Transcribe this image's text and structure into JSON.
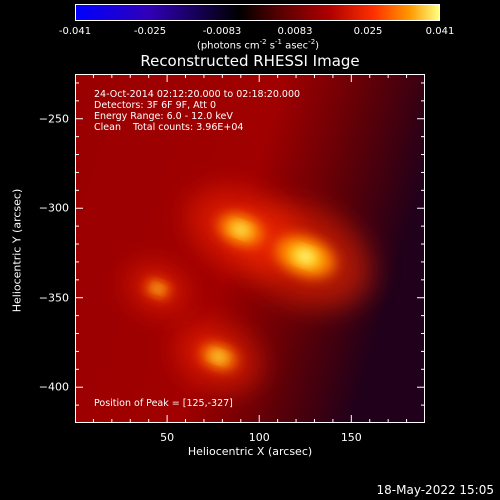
{
  "colorbar": {
    "ticks": [
      "-0.041",
      "-0.025",
      "-0.0083",
      "0.0083",
      "0.025",
      "0.041"
    ],
    "unit_main": "(photons cm",
    "unit_exp1": "-2",
    "unit_mid": " s",
    "unit_exp2": "-1",
    "unit_mid2": " asec",
    "unit_exp3": "-2",
    "unit_end": ")",
    "colors": [
      "#0000ff",
      "#3a00b0",
      "#000000",
      "#500000",
      "#b00000",
      "#ff3000",
      "#ff9a00",
      "#ffff60"
    ]
  },
  "chart_data": {
    "type": "heatmap",
    "title": "Reconstructed RHESSI Image",
    "xlabel": "Heliocentric X (arcsec)",
    "ylabel": "Heliocentric Y (arcsec)",
    "xlim": [
      0,
      190
    ],
    "ylim": [
      -420,
      -225
    ],
    "xticks": [
      50,
      100,
      150
    ],
    "yticks": [
      -250,
      -300,
      -350,
      -400
    ],
    "xtick_labels": [
      "50",
      "100",
      "150"
    ],
    "ytick_labels": [
      "−250",
      "−300",
      "−350",
      "−400"
    ],
    "sources": [
      {
        "x": 125,
        "y": -327,
        "peak": 0.041
      },
      {
        "x": 90,
        "y": -312,
        "peak": 0.03
      },
      {
        "x": 78,
        "y": -383,
        "peak": 0.022
      },
      {
        "x": 45,
        "y": -345,
        "peak": 0.012
      }
    ],
    "annotations": {
      "line1": "24-Oct-2014 02:12:20.000 to 02:18:20.000",
      "line2": "Detectors: 3F 6F 9F, Att 0",
      "line3": "Energy Range: 6.0 - 12.0 keV",
      "line4": "Clean    Total counts: 3.96E+04",
      "peak": "Position of Peak = [125,-327]"
    }
  },
  "footer": {
    "date": "18-May-2022 15:05"
  }
}
